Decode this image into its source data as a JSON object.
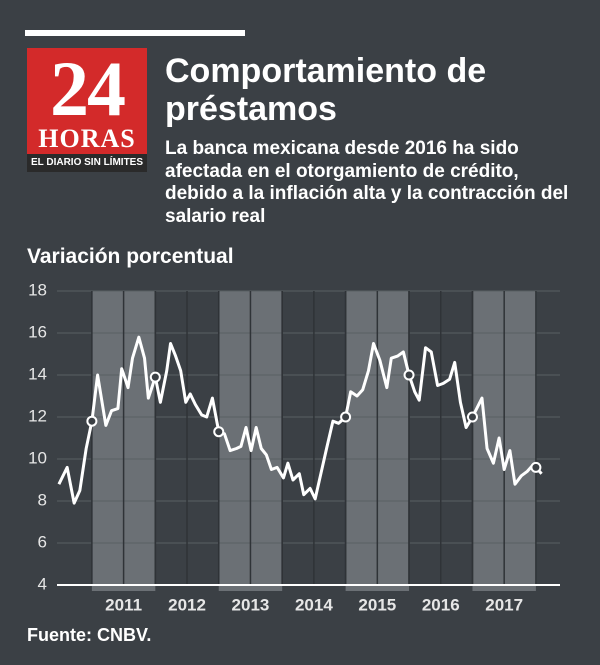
{
  "logo": {
    "number": "24",
    "name": "HORAS",
    "tagline": "EL DIARIO SIN LÍMITES"
  },
  "chart_data": {
    "type": "line",
    "title": "Comportamiento de préstamos",
    "subtitle": "La banca mexicana desde 2016 ha sido afectada en el otorgamiento de crédito, debido a la inflación alta y la contracción del salario real",
    "y_label": "Variación porcentual",
    "source": "Fuente: CNBV.",
    "xlim": [
      2010.45,
      2018.38
    ],
    "xticks": [
      {
        "value": 2011.5,
        "label": "2011"
      },
      {
        "value": 2012.5,
        "label": "2012"
      },
      {
        "value": 2013.5,
        "label": "2013"
      },
      {
        "value": 2014.5,
        "label": "2014"
      },
      {
        "value": 2015.5,
        "label": "2015"
      },
      {
        "value": 2016.5,
        "label": "2016"
      },
      {
        "value": 2017.5,
        "label": "2017"
      }
    ],
    "ylim": [
      4,
      18
    ],
    "yticks": [
      4,
      6,
      8,
      10,
      12,
      14,
      16,
      18
    ],
    "grid": true,
    "series": [
      {
        "name": "Variación",
        "color": "#ffffff",
        "x": [
          2010.48,
          2010.61,
          2010.72,
          2010.81,
          2010.91,
          2011,
          2011.09,
          2011.22,
          2011.31,
          2011.41,
          2011.47,
          2011.57,
          2011.64,
          2011.74,
          2011.83,
          2011.89,
          2012,
          2012.08,
          2012.18,
          2012.24,
          2012.32,
          2012.4,
          2012.48,
          2012.55,
          2012.63,
          2012.73,
          2012.81,
          2012.9,
          2013,
          2013.09,
          2013.18,
          2013.28,
          2013.35,
          2013.43,
          2013.51,
          2013.59,
          2013.67,
          2013.75,
          2013.83,
          2013.92,
          2014.02,
          2014.09,
          2014.17,
          2014.27,
          2014.34,
          2014.44,
          2014.52,
          2014.61,
          2014.7,
          2014.8,
          2014.89,
          2015,
          2015.08,
          2015.18,
          2015.27,
          2015.36,
          2015.44,
          2015.54,
          2015.65,
          2015.72,
          2015.82,
          2015.91,
          2016,
          2016.09,
          2016.16,
          2016.26,
          2016.35,
          2016.45,
          2016.54,
          2016.64,
          2016.72,
          2016.81,
          2016.9,
          2017,
          2017.15,
          2017.23,
          2017.33,
          2017.42,
          2017.5,
          2017.59,
          2017.67,
          2017.77,
          2017.86,
          2017.95,
          2018,
          2018.09
        ],
        "values": [
          8.8,
          9.6,
          7.9,
          8.5,
          10.5,
          11.8,
          14.0,
          11.6,
          12.3,
          12.4,
          14.3,
          13.4,
          14.8,
          15.8,
          14.8,
          12.9,
          13.9,
          12.7,
          14.2,
          15.5,
          14.9,
          14.2,
          12.7,
          13.1,
          12.6,
          12.1,
          12.0,
          12.9,
          11.3,
          11.2,
          10.4,
          10.5,
          10.6,
          11.5,
          10.4,
          11.5,
          10.5,
          10.2,
          9.5,
          9.6,
          9.1,
          9.8,
          9.0,
          9.3,
          8.3,
          8.6,
          8.1,
          9.3,
          10.5,
          11.8,
          11.7,
          12.0,
          13.2,
          13.0,
          13.3,
          14.2,
          15.5,
          14.7,
          13.4,
          14.8,
          14.9,
          15.1,
          14.0,
          13.2,
          12.8,
          15.3,
          15.1,
          13.5,
          13.6,
          13.8,
          14.6,
          12.7,
          11.5,
          12.0,
          12.9,
          10.5,
          9.8,
          11.0,
          9.5,
          10.4,
          8.8,
          9.2,
          9.4,
          9.7,
          9.6,
          9.3
        ]
      }
    ]
  }
}
